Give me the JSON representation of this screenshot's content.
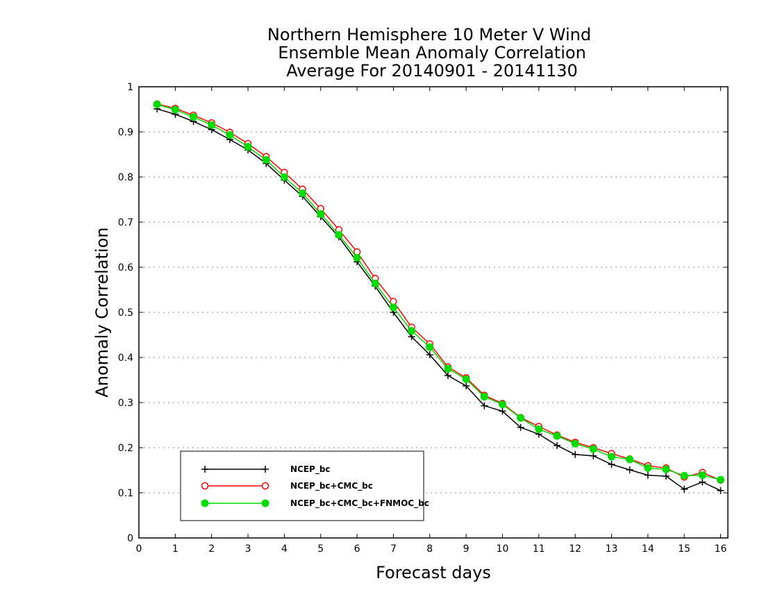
{
  "chart_data": {
    "type": "line",
    "title": [
      "Northern Hemisphere 10 Meter V Wind",
      "Ensemble Mean Anomaly Correlation",
      "Average For 20140901 - 20141130"
    ],
    "xlabel": "Forecast days",
    "ylabel": "Anomaly Correlation",
    "xlim": [
      0,
      16.2
    ],
    "ylim": [
      0,
      1
    ],
    "x_ticks": [
      "0",
      "1",
      "2",
      "3",
      "4",
      "5",
      "6",
      "7",
      "8",
      "9",
      "10",
      "11",
      "12",
      "13",
      "14",
      "15",
      "16"
    ],
    "y_ticks": [
      "0",
      "0.1",
      "0.2",
      "0.3",
      "0.4",
      "0.5",
      "0.6",
      "0.7",
      "0.8",
      "0.9",
      "1"
    ],
    "grid": "horizontal-dotted",
    "legend_position": "bottom-left",
    "x": [
      0.5,
      1,
      1.5,
      2,
      2.5,
      3,
      3.5,
      4,
      4.5,
      5,
      5.5,
      6,
      6.5,
      7,
      7.5,
      8,
      8.5,
      9,
      9.5,
      10,
      10.5,
      11,
      11.5,
      12,
      12.5,
      13,
      13.5,
      14,
      14.5,
      15,
      15.5,
      16
    ],
    "series": [
      {
        "name": "NCEP_bc",
        "color": "#000000",
        "marker": "plus",
        "values": [
          0.951,
          0.939,
          0.923,
          0.905,
          0.883,
          0.86,
          0.83,
          0.793,
          0.757,
          0.712,
          0.667,
          0.612,
          0.558,
          0.5,
          0.446,
          0.406,
          0.36,
          0.337,
          0.293,
          0.281,
          0.245,
          0.23,
          0.205,
          0.185,
          0.182,
          0.163,
          0.151,
          0.139,
          0.137,
          0.108,
          0.124,
          0.105
        ]
      },
      {
        "name": "NCEP_bc+CMC_bc",
        "color": "#ff0000",
        "marker": "open-circle",
        "values": [
          0.962,
          0.952,
          0.937,
          0.92,
          0.899,
          0.874,
          0.845,
          0.81,
          0.773,
          0.73,
          0.683,
          0.634,
          0.575,
          0.524,
          0.467,
          0.43,
          0.379,
          0.355,
          0.316,
          0.298,
          0.267,
          0.247,
          0.228,
          0.212,
          0.2,
          0.187,
          0.175,
          0.16,
          0.155,
          0.135,
          0.145,
          0.128
        ]
      },
      {
        "name": "NCEP_bc+CMC_bc+FNMOC_bc",
        "color": "#00dd00",
        "marker": "filled-circle",
        "values": [
          0.961,
          0.949,
          0.933,
          0.915,
          0.893,
          0.867,
          0.838,
          0.8,
          0.764,
          0.718,
          0.672,
          0.621,
          0.564,
          0.511,
          0.459,
          0.423,
          0.375,
          0.352,
          0.313,
          0.296,
          0.266,
          0.241,
          0.226,
          0.209,
          0.197,
          0.18,
          0.174,
          0.155,
          0.152,
          0.138,
          0.139,
          0.129
        ]
      }
    ]
  }
}
